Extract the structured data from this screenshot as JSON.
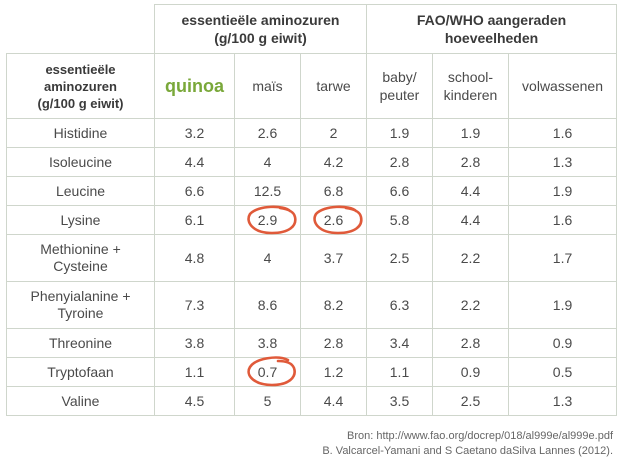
{
  "headers": {
    "group_essentials": "essentieële aminozuren\n(g/100 g eiwit)",
    "group_fao": "FAO/WHO aangeraden\nhoeveelheden",
    "row_header": "essentieële\naminozuren\n(g/100 g eiwit)",
    "columns": [
      "quinoa",
      "maïs",
      "tarwe",
      "baby/\npeuter",
      "school-\nkinderen",
      "volwassenen"
    ]
  },
  "rows": [
    {
      "label": "Histidine",
      "quinoa": "3.2",
      "mais": "2.6",
      "tarwe": "2",
      "baby": "1.9",
      "school": "1.9",
      "adult": "1.6"
    },
    {
      "label": "Isoleucine",
      "quinoa": "4.4",
      "mais": "4",
      "tarwe": "4.2",
      "baby": "2.8",
      "school": "2.8",
      "adult": "1.3"
    },
    {
      "label": "Leucine",
      "quinoa": "6.6",
      "mais": "12.5",
      "tarwe": "6.8",
      "baby": "6.6",
      "school": "4.4",
      "adult": "1.9"
    },
    {
      "label": "Lysine",
      "quinoa": "6.1",
      "mais": "2.9",
      "tarwe": "2.6",
      "baby": "5.8",
      "school": "4.4",
      "adult": "1.6"
    },
    {
      "label": "Methionine +\nCysteine",
      "quinoa": "4.8",
      "mais": "4",
      "tarwe": "3.7",
      "baby": "2.5",
      "school": "2.2",
      "adult": "1.7"
    },
    {
      "label": "Phenyialanine +\nTyroine",
      "quinoa": "7.3",
      "mais": "8.6",
      "tarwe": "8.2",
      "baby": "6.3",
      "school": "2.2",
      "adult": "1.9"
    },
    {
      "label": "Threonine",
      "quinoa": "3.8",
      "mais": "3.8",
      "tarwe": "2.8",
      "baby": "3.4",
      "school": "2.8",
      "adult": "0.9"
    },
    {
      "label": "Tryptofaan",
      "quinoa": "1.1",
      "mais": "0.7",
      "tarwe": "1.2",
      "baby": "1.1",
      "school": "0.9",
      "adult": "0.5"
    },
    {
      "label": "Valine",
      "quinoa": "4.5",
      "mais": "5",
      "tarwe": "4.4",
      "baby": "3.5",
      "school": "2.5",
      "adult": "1.3"
    }
  ],
  "source": {
    "line1": "Bron: http://www.fao.org/docrep/018/al999e/al999e.pdf",
    "line2": "B. Valcarcel-Yamani and S Caetano daSilva Lannes (2012)."
  },
  "colors": {
    "quinoa": "#6f9a2e",
    "circle": "#e05a3a",
    "grid": "#cfd6cc"
  }
}
